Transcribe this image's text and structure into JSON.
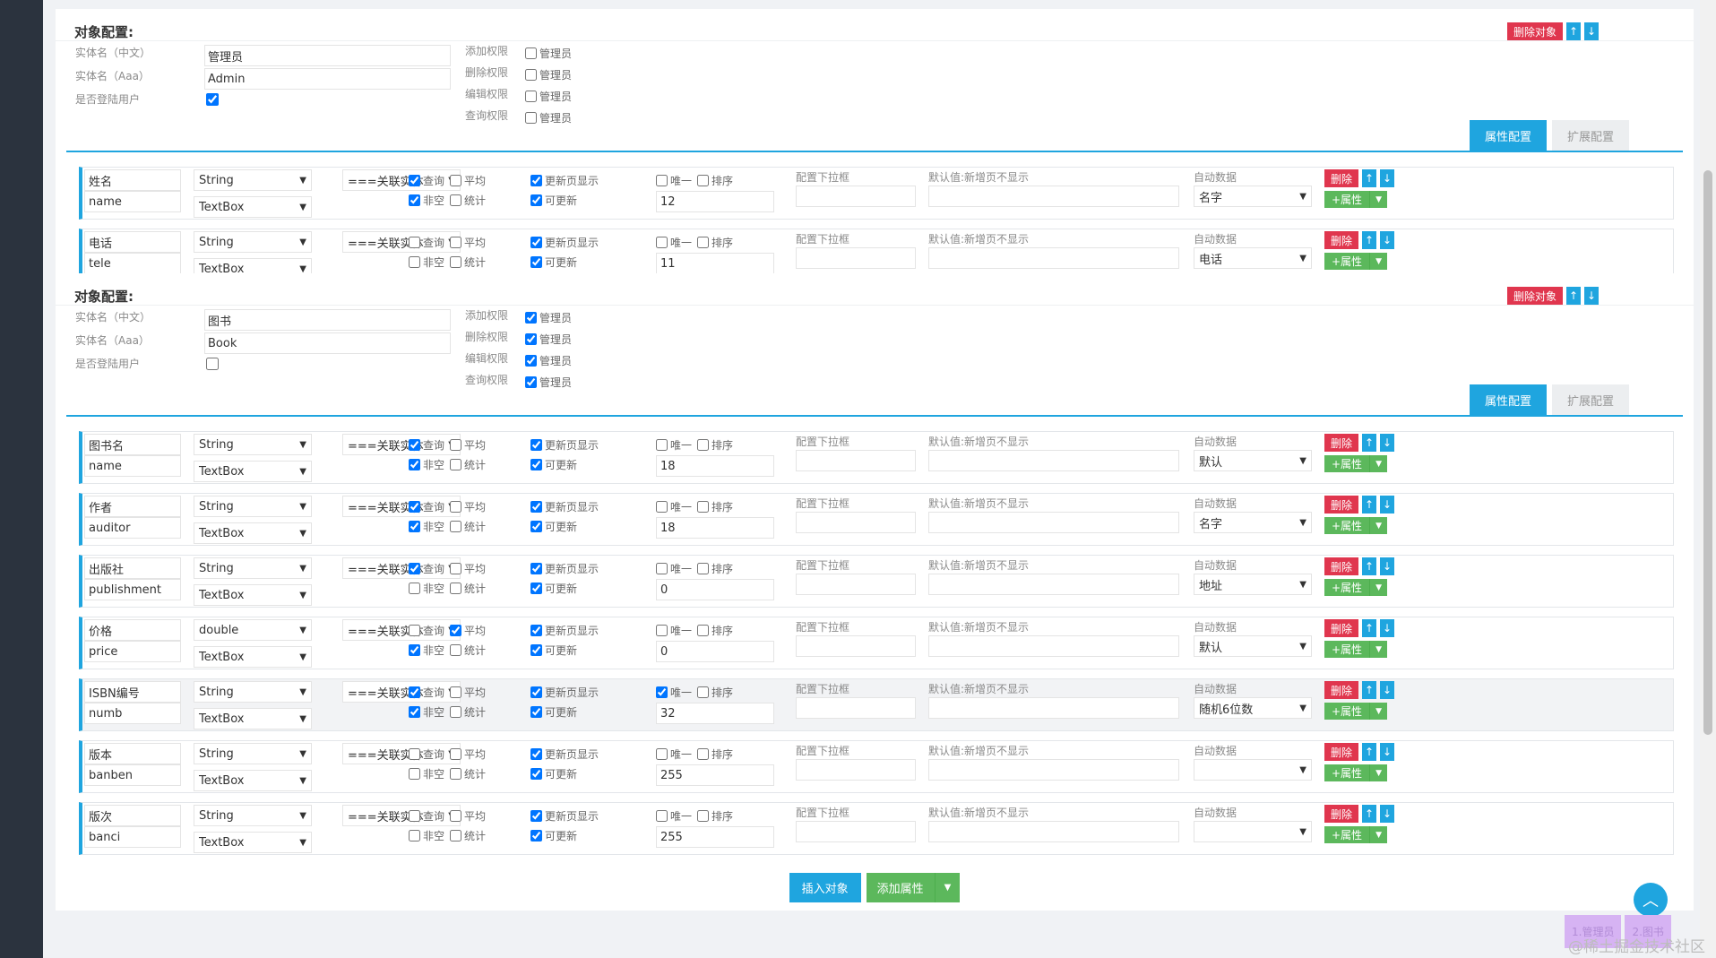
{
  "colors": {
    "accent": "#1fa5df",
    "danger": "#e0364e",
    "success": "#5cb85c"
  },
  "icons": {
    "up": "↑",
    "down": "↓",
    "caret": "▼",
    "totop": "chevron-up"
  },
  "ui": {
    "delete_object": "删除对象",
    "entity_cn_label": "实体名（中文）",
    "entity_en_label": "实体名（Aaa）",
    "login_label": "是否登陆用户",
    "perm_add": "添加权限",
    "perm_del": "删除权限",
    "perm_edit": "编辑权限",
    "perm_query": "查询权限",
    "role": "管理员",
    "tab_attr": "属性配置",
    "tab_ext": "扩展配置",
    "cb_query": "查询",
    "cb_avg": "平均",
    "cb_notnull": "非空",
    "cb_stat": "统计",
    "cb_showupdate": "更新页显示",
    "cb_updatable": "可更新",
    "cb_unique": "唯一",
    "cb_sort": "排序",
    "dropdown_label": "配置下拉框",
    "default_label": "默认值:新增页不显示",
    "auto_label": "自动数据",
    "del": "删除",
    "add_prop": "+属性",
    "insert_object": "插入对象",
    "add_attribute": "添加属性"
  },
  "objects": [
    {
      "title": "对象配置:",
      "cn": "管理员",
      "en": "Admin",
      "is_login": true,
      "perm": {
        "add": false,
        "del": false,
        "edit": false,
        "query": false
      },
      "rows": [
        {
          "cn": "姓名",
          "en": "name",
          "type": "String",
          "widget": "TextBox",
          "relate": "===关联实体",
          "query": true,
          "avg": false,
          "notnull": true,
          "stat": false,
          "showupdate": true,
          "updatable": true,
          "unique": false,
          "sort": false,
          "len": "12",
          "auto": "名字",
          "hl": false
        },
        {
          "cn": "电话",
          "en": "tele",
          "type": "String",
          "widget": "TextBox",
          "relate": "===关联实体",
          "query": false,
          "avg": false,
          "notnull": false,
          "stat": false,
          "showupdate": true,
          "updatable": true,
          "unique": false,
          "sort": false,
          "len": "11",
          "auto": "电话",
          "hl": false
        }
      ]
    },
    {
      "title": "对象配置:",
      "cn": "图书",
      "en": "Book",
      "is_login": false,
      "perm": {
        "add": true,
        "del": true,
        "edit": true,
        "query": true
      },
      "rows": [
        {
          "cn": "图书名",
          "en": "name",
          "type": "String",
          "widget": "TextBox",
          "relate": "===关联实体",
          "query": true,
          "avg": false,
          "notnull": true,
          "stat": false,
          "showupdate": true,
          "updatable": true,
          "unique": false,
          "sort": false,
          "len": "18",
          "auto": "默认",
          "hl": false
        },
        {
          "cn": "作者",
          "en": "auditor",
          "type": "String",
          "widget": "TextBox",
          "relate": "===关联实体",
          "query": true,
          "avg": false,
          "notnull": true,
          "stat": false,
          "showupdate": true,
          "updatable": true,
          "unique": false,
          "sort": false,
          "len": "18",
          "auto": "名字",
          "hl": false
        },
        {
          "cn": "出版社",
          "en": "publishment",
          "type": "String",
          "widget": "TextBox",
          "relate": "===关联实体",
          "query": true,
          "avg": false,
          "notnull": false,
          "stat": false,
          "showupdate": true,
          "updatable": true,
          "unique": false,
          "sort": false,
          "len": "0",
          "auto": "地址",
          "hl": false
        },
        {
          "cn": "价格",
          "en": "price",
          "type": "double",
          "widget": "TextBox",
          "relate": "===关联实体",
          "query": false,
          "avg": true,
          "notnull": true,
          "stat": false,
          "showupdate": true,
          "updatable": true,
          "unique": false,
          "sort": false,
          "len": "0",
          "auto": "默认",
          "hl": false
        },
        {
          "cn": "ISBN编号",
          "en": "numb",
          "type": "String",
          "widget": "TextBox",
          "relate": "===关联实体",
          "query": true,
          "avg": false,
          "notnull": true,
          "stat": false,
          "showupdate": true,
          "updatable": true,
          "unique": true,
          "sort": false,
          "len": "32",
          "auto": "随机6位数",
          "hl": true
        },
        {
          "cn": "版本",
          "en": "banben",
          "type": "String",
          "widget": "TextBox",
          "relate": "===关联实体",
          "query": false,
          "avg": false,
          "notnull": false,
          "stat": false,
          "showupdate": true,
          "updatable": true,
          "unique": false,
          "sort": false,
          "len": "255",
          "auto": "",
          "hl": false
        },
        {
          "cn": "版次",
          "en": "banci",
          "type": "String",
          "widget": "TextBox",
          "relate": "===关联实体",
          "query": false,
          "avg": false,
          "notnull": false,
          "stat": false,
          "showupdate": true,
          "updatable": true,
          "unique": false,
          "sort": false,
          "len": "255",
          "auto": "",
          "hl": false
        }
      ]
    }
  ],
  "quicklinks": [
    "1.管理员",
    "2.图书"
  ],
  "watermark": "@稀土掘金技术社区"
}
